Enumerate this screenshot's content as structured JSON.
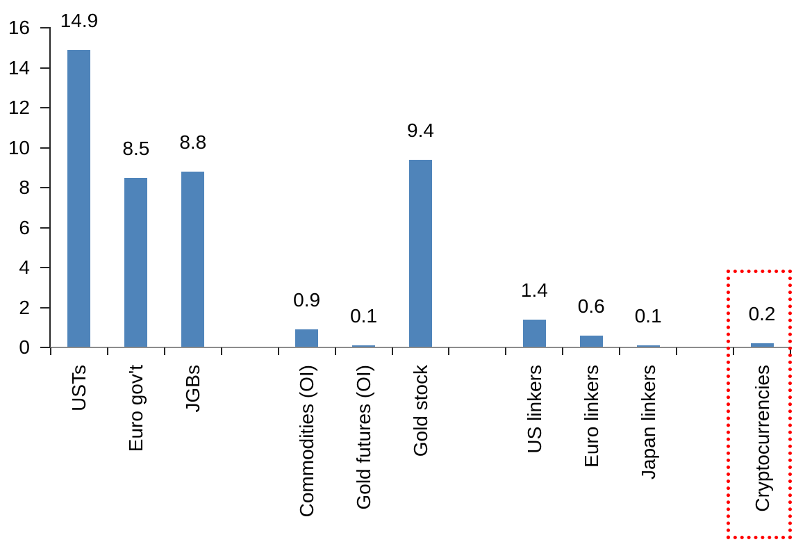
{
  "chart_data": {
    "type": "bar",
    "title": "",
    "xlabel": "",
    "ylabel": "",
    "categories": [
      "USTs",
      "Euro gov't",
      "JGBs",
      "Commodities (OI)",
      "Gold futures (OI)",
      "Gold stock",
      "US linkers",
      "Euro linkers",
      "Japan linkers",
      "Cryptocurrencies"
    ],
    "values": [
      14.9,
      8.5,
      8.8,
      0.9,
      0.1,
      9.4,
      1.4,
      0.6,
      0.1,
      0.2
    ],
    "data_labels": [
      "14.9",
      "8.5",
      "8.8",
      "0.9",
      "0.1",
      "9.4",
      "1.4",
      "0.6",
      "0.1",
      "0.2"
    ],
    "slots": [
      0,
      1,
      2,
      4,
      5,
      6,
      8,
      9,
      10,
      12
    ],
    "total_slots": 13,
    "groups": [
      [
        "USTs",
        "Euro gov't",
        "JGBs"
      ],
      [
        "Commodities (OI)",
        "Gold futures (OI)",
        "Gold stock"
      ],
      [
        "US linkers",
        "Euro linkers",
        "Japan linkers"
      ],
      [
        "Cryptocurrencies"
      ]
    ],
    "ylim": [
      0,
      16
    ],
    "y_ticks": [
      0,
      2,
      4,
      6,
      8,
      10,
      12,
      14,
      16
    ],
    "grid": false,
    "legend": false,
    "bar_color": "#4f84ba",
    "axis_tick_color": "#262626",
    "baseline_color": "#8c8c8c",
    "text_color": "#000000",
    "highlight": {
      "category": "Cryptocurrencies",
      "shape": "dotted-rectangle",
      "border_color": "#ff0000",
      "border_width_px": 5
    }
  }
}
